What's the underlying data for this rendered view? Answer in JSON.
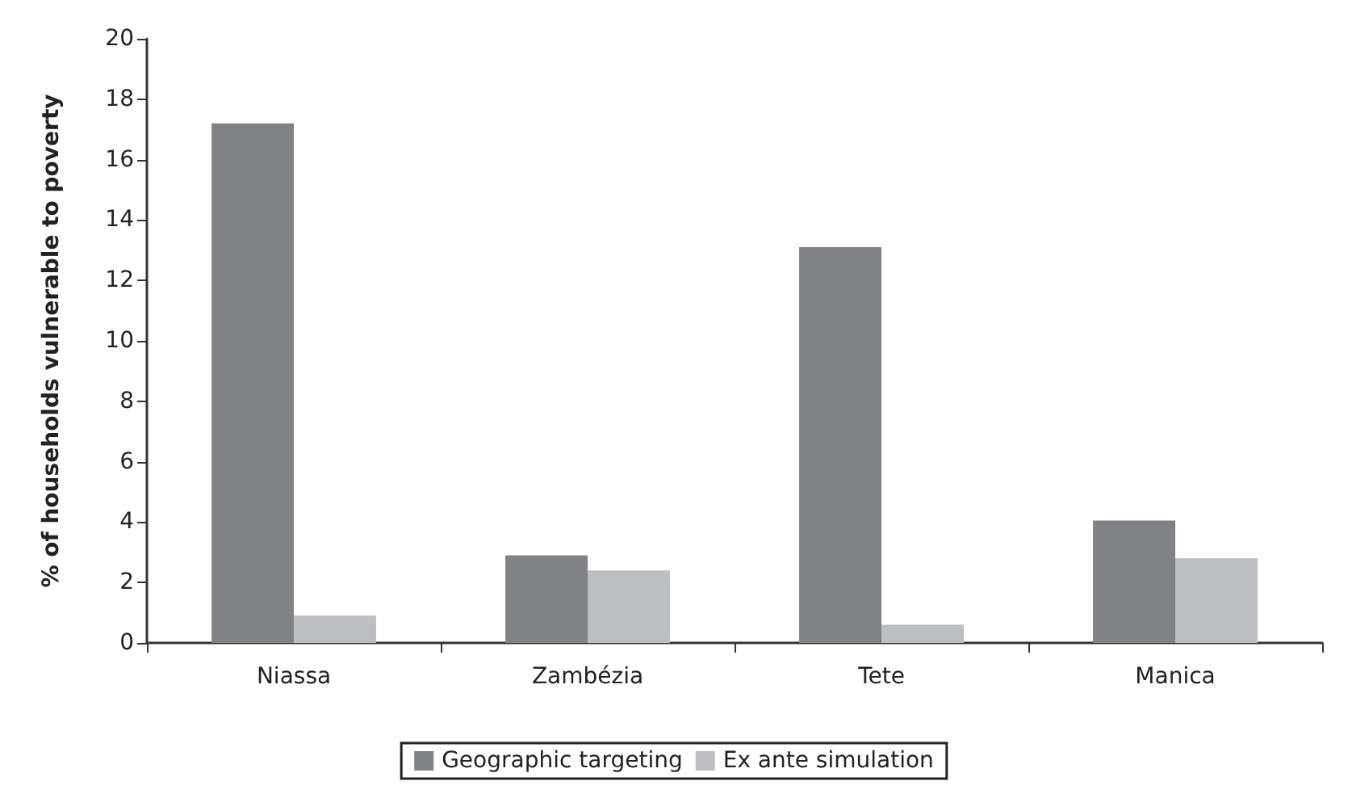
{
  "chart_data": {
    "type": "bar",
    "ylabel": "% of households vulnerable to poverty",
    "categories": [
      "Niassa",
      "Zambézia",
      "Tete",
      "Manica"
    ],
    "series": [
      {
        "name": "Geographic targeting",
        "color": "#818285",
        "values": [
          17.2,
          2.9,
          13.1,
          4.05
        ]
      },
      {
        "name": "Ex ante simulation",
        "color": "#bdbec1",
        "values": [
          0.9,
          2.4,
          0.6,
          2.8
        ]
      }
    ],
    "ylim": [
      0,
      20
    ],
    "yticks": [
      0,
      2,
      4,
      6,
      8,
      10,
      12,
      14,
      16,
      18,
      20
    ],
    "grid": false,
    "legend": "bottom"
  }
}
